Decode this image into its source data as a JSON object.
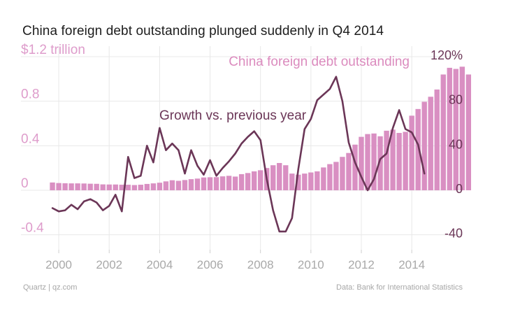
{
  "title": "China foreign debt outstanding plunged suddenly in Q4 2014",
  "footer": {
    "source_left": "Quartz | qz.com",
    "source_right": "Data: Bank for International Statistics"
  },
  "colors": {
    "bars": "#d98fc2",
    "bar_label": "#db8bbe",
    "line": "#6b3657",
    "grid": "#e8e8e8",
    "tick": "#a9a9a9",
    "left_tick": "#de9ccb",
    "right_tick": "#6b3657"
  },
  "chart_data": {
    "type": "bar+line",
    "title": "China foreign debt outstanding plunged suddenly in Q4 2014",
    "x_tick_labels": [
      "2000",
      "2002",
      "2004",
      "2006",
      "2008",
      "2010",
      "2012",
      "2014"
    ],
    "x_ticks": [
      2000,
      2002,
      2004,
      2006,
      2008,
      2010,
      2012,
      2014
    ],
    "left_axis": {
      "unit": "trillion USD",
      "ylim": [
        -0.45,
        1.25
      ],
      "ticks": [
        1.2,
        0.8,
        0.4,
        0,
        -0.4
      ],
      "tick_labels": [
        "$1.2 trillion",
        "0.8",
        "0.4",
        "0",
        "-0.4"
      ]
    },
    "right_axis": {
      "unit": "percent",
      "ylim": [
        -45,
        125
      ],
      "ticks": [
        120,
        80,
        40,
        0,
        -40
      ],
      "tick_labels": [
        "120%",
        "80",
        "40",
        "0",
        "-40"
      ]
    },
    "series": [
      {
        "name": "China foreign debt outstanding",
        "type": "bar",
        "axis": "left",
        "x_start": 1999.75,
        "x_step": 0.25,
        "values": [
          0.07,
          0.065,
          0.063,
          0.062,
          0.062,
          0.061,
          0.059,
          0.058,
          0.053,
          0.052,
          0.052,
          0.05,
          0.05,
          0.047,
          0.05,
          0.057,
          0.062,
          0.068,
          0.08,
          0.09,
          0.085,
          0.092,
          0.1,
          0.105,
          0.115,
          0.117,
          0.118,
          0.125,
          0.13,
          0.123,
          0.145,
          0.155,
          0.17,
          0.18,
          0.2,
          0.225,
          0.245,
          0.225,
          0.15,
          0.14,
          0.15,
          0.16,
          0.17,
          0.205,
          0.235,
          0.255,
          0.3,
          0.335,
          0.41,
          0.48,
          0.505,
          0.51,
          0.485,
          0.535,
          0.545,
          0.515,
          0.525,
          0.67,
          0.73,
          0.795,
          0.84,
          0.905,
          1.04,
          1.1,
          1.09,
          1.11,
          1.04
        ]
      },
      {
        "name": "Growth vs. previous year",
        "type": "line",
        "axis": "right",
        "x_start": 1999.75,
        "x_step": 0.25,
        "values": [
          -16,
          -19,
          -18,
          -13,
          -17,
          -10,
          -8,
          -11,
          -18,
          -14,
          -4,
          -19,
          30,
          11,
          13,
          40,
          25,
          56,
          36,
          42,
          36,
          15,
          36,
          22,
          14,
          27,
          13,
          20,
          26,
          33,
          42,
          48,
          53,
          45,
          10,
          -18,
          -37,
          -37,
          -25,
          19,
          55,
          64,
          81,
          86,
          91,
          102,
          80,
          43,
          25,
          12,
          0,
          10,
          28,
          33,
          56,
          72,
          55,
          52,
          41,
          15
        ]
      }
    ],
    "annotations": [
      {
        "text": "China foreign debt outstanding",
        "series": "China foreign debt outstanding"
      },
      {
        "text": "Growth vs. previous year",
        "series": "Growth vs. previous year"
      }
    ]
  }
}
